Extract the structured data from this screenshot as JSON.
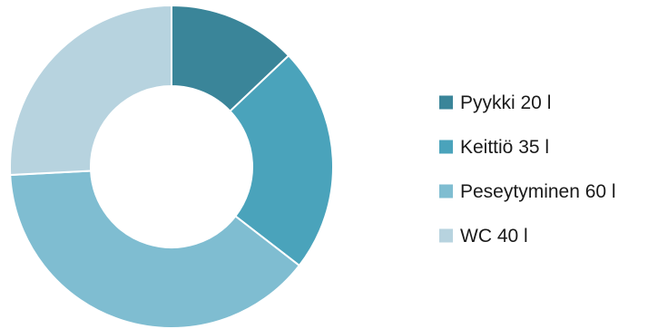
{
  "chart_data": {
    "type": "pie",
    "variant": "donut",
    "title": "",
    "unit": "l",
    "categories": [
      "Pyykki",
      "Keittiö",
      "Peseytyminen",
      "WC"
    ],
    "values": [
      20,
      35,
      60,
      40
    ],
    "colors": [
      "#3a8599",
      "#4aa3bb",
      "#7fbdd1",
      "#b7d3df"
    ],
    "legend": {
      "position": "right",
      "labels": [
        "Pyykki 20 l",
        "Keittiö 35 l",
        "Peseytyminen 60 l",
        "WC 40 l"
      ]
    },
    "start_angle": "top",
    "direction": "clockwise"
  }
}
